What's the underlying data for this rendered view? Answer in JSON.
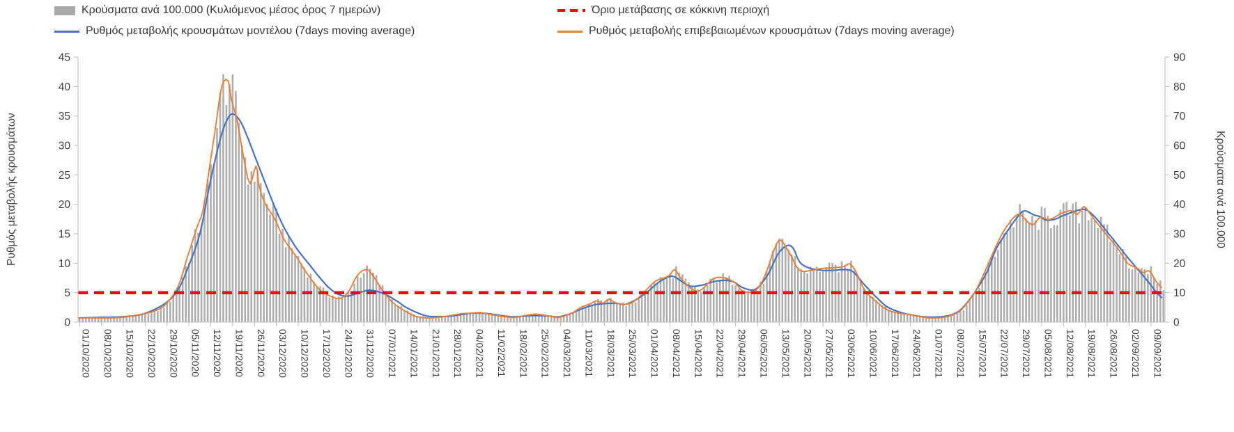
{
  "page": {
    "background": "#ffffff"
  },
  "chart_data": {
    "type": "composite",
    "title": "",
    "legend": [
      {
        "id": "bars",
        "label": "Κρούσματα ανά 100.000 (Κυλιόμενος μέσος όρος 7 ημερών)",
        "swatch": "bar",
        "color": "#a9a9a9"
      },
      {
        "id": "threshold",
        "label": "Όριο μετάβασης σε κόκκινη περιοχή",
        "swatch": "dashes",
        "color": "#ff0000"
      },
      {
        "id": "model",
        "label": "Ρυθμός μεταβολής κρουσμάτων μοντέλου (7days moving average)",
        "swatch": "line",
        "color": "#4472c4"
      },
      {
        "id": "confirmed",
        "label": "Ρυθμός μεταβολής επιβεβαιωμένων κρουσμάτων (7days moving average)",
        "swatch": "line",
        "color": "#ed7d31"
      }
    ],
    "axes": {
      "left": {
        "label": "Ρυθμός μεταβολής κρουσμάτων",
        "min": 0,
        "max": 45,
        "tick_step": 5
      },
      "right": {
        "label": "Κρούσματα ανά 100.000",
        "min": 0,
        "max": 90,
        "tick_step": 10
      },
      "x": {
        "days_per_tick": 7,
        "total_days": 348,
        "tick_labels": [
          "01/10/2020",
          "08/10/2020",
          "15/10/2020",
          "22/10/2020",
          "29/10/2020",
          "05/11/2020",
          "12/11/2020",
          "19/11/2020",
          "26/11/2020",
          "03/12/2020",
          "10/12/2020",
          "17/12/2020",
          "24/12/2020",
          "31/12/2020",
          "07/01/2021",
          "14/01/2021",
          "21/01/2021",
          "28/01/2021",
          "04/02/2021",
          "11/02/2021",
          "18/02/2021",
          "25/02/2021",
          "04/03/2021",
          "11/03/2021",
          "18/03/2021",
          "25/03/2021",
          "01/04/2021",
          "08/04/2021",
          "15/04/2021",
          "22/04/2021",
          "29/04/2021",
          "06/05/2021",
          "13/05/2021",
          "20/05/2021",
          "27/05/2021",
          "03/06/2021",
          "10/06/2021",
          "17/06/2021",
          "24/06/2021",
          "01/07/2021",
          "08/07/2021",
          "15/07/2021",
          "22/07/2021",
          "29/07/2021",
          "05/08/2021",
          "12/08/2021",
          "19/08/2021",
          "26/08/2021",
          "02/09/2021",
          "09/09/2021"
        ]
      }
    },
    "threshold": {
      "label": "Όριο μετάβασης σε κόκκινη περιοχή",
      "axis": "left",
      "value": 5,
      "color": "#ff0000",
      "style": "dashed"
    },
    "series": [
      {
        "name": "Κρούσματα ανά 100.000 (Κυλιόμενος μέσος όρος 7 ημερών)",
        "type": "bar",
        "axis": "right",
        "color": "#aeaeae",
        "sampling": "weekly values read at the labeled x ticks",
        "weekly_values_at_ticks": [
          1.5,
          1.5,
          1.6,
          3,
          6,
          22,
          52,
          76,
          44,
          35,
          22,
          11.5,
          8,
          17.5,
          10,
          3.5,
          1.5,
          2,
          3,
          2.5,
          1.5,
          2.5,
          1.5,
          5,
          6.5,
          6,
          11,
          15.5,
          11.5,
          14.5,
          13.5,
          10.5,
          27.5,
          17.5,
          18,
          19,
          10.5,
          4,
          2.5,
          1.5,
          2.5,
          10,
          26,
          36.5,
          35.5,
          37,
          39,
          30,
          20,
          17.5
        ]
      },
      {
        "name": "Ρυθμός μεταβολής κρουσμάτων μοντέλου (7days moving average)",
        "type": "line",
        "axis": "left",
        "color": "#4472c4",
        "sampling": "day offset from 01/10/2020, value on left axis",
        "points_day_value": [
          [
            0,
            0.7
          ],
          [
            7,
            0.8
          ],
          [
            14,
            0.9
          ],
          [
            21,
            1.4
          ],
          [
            28,
            3.2
          ],
          [
            32,
            5.5
          ],
          [
            35,
            9
          ],
          [
            39,
            15
          ],
          [
            42,
            23
          ],
          [
            45,
            30
          ],
          [
            47,
            33.5
          ],
          [
            49,
            35.3
          ],
          [
            51,
            34.8
          ],
          [
            53,
            33
          ],
          [
            56,
            29
          ],
          [
            60,
            23.5
          ],
          [
            63,
            19.5
          ],
          [
            66,
            16
          ],
          [
            70,
            12.5
          ],
          [
            74,
            9.8
          ],
          [
            77,
            7.8
          ],
          [
            80,
            6
          ],
          [
            83,
            4.8
          ],
          [
            86,
            4.4
          ],
          [
            89,
            4.8
          ],
          [
            92,
            5.3
          ],
          [
            94,
            5.4
          ],
          [
            98,
            4.8
          ],
          [
            102,
            3.6
          ],
          [
            105,
            2.5
          ],
          [
            109,
            1.5
          ],
          [
            112,
            1
          ],
          [
            116,
            0.95
          ],
          [
            119,
            1
          ],
          [
            123,
            1.3
          ],
          [
            126,
            1.5
          ],
          [
            130,
            1.5
          ],
          [
            133,
            1.3
          ],
          [
            137,
            1
          ],
          [
            140,
            0.9
          ],
          [
            144,
            1.05
          ],
          [
            147,
            1.1
          ],
          [
            151,
            1
          ],
          [
            154,
            0.9
          ],
          [
            158,
            1.5
          ],
          [
            161,
            2.2
          ],
          [
            165,
            2.9
          ],
          [
            168,
            3.1
          ],
          [
            172,
            3.2
          ],
          [
            175,
            3
          ],
          [
            178,
            3.6
          ],
          [
            182,
            5
          ],
          [
            186,
            6.8
          ],
          [
            190,
            7.8
          ],
          [
            193,
            7
          ],
          [
            196,
            6.1
          ],
          [
            200,
            6.3
          ],
          [
            203,
            6.8
          ],
          [
            207,
            7.1
          ],
          [
            210,
            6.8
          ],
          [
            213,
            5.8
          ],
          [
            217,
            5.6
          ],
          [
            221,
            8.2
          ],
          [
            224,
            11.5
          ],
          [
            227,
            13
          ],
          [
            229,
            12.5
          ],
          [
            231,
            10.2
          ],
          [
            234,
            9.2
          ],
          [
            238,
            8.8
          ],
          [
            242,
            8.8
          ],
          [
            245,
            8.9
          ],
          [
            248,
            8.6
          ],
          [
            252,
            6.2
          ],
          [
            256,
            4
          ],
          [
            259,
            2.6
          ],
          [
            263,
            1.7
          ],
          [
            266,
            1.3
          ],
          [
            270,
            0.95
          ],
          [
            273,
            0.85
          ],
          [
            277,
            0.95
          ],
          [
            280,
            1.3
          ],
          [
            283,
            2.3
          ],
          [
            287,
            5
          ],
          [
            291,
            8.5
          ],
          [
            294,
            12.5
          ],
          [
            298,
            15.8
          ],
          [
            301,
            18
          ],
          [
            303,
            18.9
          ],
          [
            306,
            18.2
          ],
          [
            308,
            17.9
          ],
          [
            310,
            17.3
          ],
          [
            313,
            17.5
          ],
          [
            315,
            18
          ],
          [
            318,
            18.6
          ],
          [
            321,
            19.1
          ],
          [
            323,
            19
          ],
          [
            326,
            17.6
          ],
          [
            329,
            15.6
          ],
          [
            333,
            13
          ],
          [
            336,
            11
          ],
          [
            340,
            8.5
          ],
          [
            343,
            6.6
          ],
          [
            345,
            5.2
          ],
          [
            347,
            4.1
          ]
        ]
      },
      {
        "name": "Ρυθμός μεταβολής επιβεβαιωμένων κρουσμάτων (7days moving average)",
        "type": "line",
        "axis": "left",
        "color": "#ed7d31",
        "sampling": "day offset from 01/10/2020, value on left axis",
        "points_day_value": [
          [
            0,
            0.7
          ],
          [
            7,
            0.7
          ],
          [
            14,
            0.8
          ],
          [
            21,
            1.4
          ],
          [
            25,
            2
          ],
          [
            28,
            3
          ],
          [
            32,
            6
          ],
          [
            35,
            11
          ],
          [
            38,
            16
          ],
          [
            40,
            19
          ],
          [
            42,
            26
          ],
          [
            44,
            33
          ],
          [
            46,
            40
          ],
          [
            48,
            41
          ],
          [
            49,
            38
          ],
          [
            51,
            34
          ],
          [
            53,
            28
          ],
          [
            55,
            23.5
          ],
          [
            57,
            26.5
          ],
          [
            58,
            23
          ],
          [
            60,
            20
          ],
          [
            63,
            17.5
          ],
          [
            66,
            14
          ],
          [
            70,
            11
          ],
          [
            73,
            8.5
          ],
          [
            77,
            5.7
          ],
          [
            80,
            4.6
          ],
          [
            84,
            4
          ],
          [
            87,
            5.5
          ],
          [
            89,
            7.6
          ],
          [
            91,
            8.7
          ],
          [
            93,
            8.8
          ],
          [
            95,
            7.4
          ],
          [
            98,
            5
          ],
          [
            101,
            3.2
          ],
          [
            105,
            1.8
          ],
          [
            108,
            1
          ],
          [
            112,
            0.7
          ],
          [
            116,
            0.85
          ],
          [
            119,
            1.1
          ],
          [
            123,
            1.45
          ],
          [
            126,
            1.5
          ],
          [
            129,
            1.6
          ],
          [
            133,
            1.2
          ],
          [
            137,
            0.9
          ],
          [
            140,
            0.8
          ],
          [
            144,
            1.2
          ],
          [
            147,
            1.35
          ],
          [
            151,
            1
          ],
          [
            154,
            0.8
          ],
          [
            158,
            1.5
          ],
          [
            161,
            2.5
          ],
          [
            164,
            3.1
          ],
          [
            166,
            3.6
          ],
          [
            168,
            3.2
          ],
          [
            170,
            3.9
          ],
          [
            172,
            3.3
          ],
          [
            175,
            3
          ],
          [
            178,
            3.5
          ],
          [
            182,
            5.5
          ],
          [
            185,
            7
          ],
          [
            189,
            7.8
          ],
          [
            191,
            8.9
          ],
          [
            193,
            7.4
          ],
          [
            196,
            5.8
          ],
          [
            199,
            5.3
          ],
          [
            203,
            7.2
          ],
          [
            206,
            7.6
          ],
          [
            210,
            6.8
          ],
          [
            213,
            5.2
          ],
          [
            217,
            5.4
          ],
          [
            220,
            8
          ],
          [
            223,
            12.5
          ],
          [
            225,
            13.9
          ],
          [
            228,
            11.5
          ],
          [
            231,
            8.8
          ],
          [
            235,
            8.8
          ],
          [
            238,
            9.1
          ],
          [
            241,
            9.2
          ],
          [
            245,
            9.4
          ],
          [
            247,
            9.9
          ],
          [
            249,
            8.6
          ],
          [
            252,
            5.3
          ],
          [
            256,
            3.3
          ],
          [
            259,
            2.1
          ],
          [
            263,
            1.5
          ],
          [
            266,
            1.3
          ],
          [
            270,
            0.9
          ],
          [
            273,
            0.7
          ],
          [
            277,
            0.8
          ],
          [
            280,
            1.2
          ],
          [
            283,
            2.2
          ],
          [
            287,
            5
          ],
          [
            290,
            8.2
          ],
          [
            294,
            13
          ],
          [
            297,
            16
          ],
          [
            301,
            18.3
          ],
          [
            304,
            17
          ],
          [
            306,
            16.6
          ],
          [
            308,
            17.8
          ],
          [
            311,
            17.4
          ],
          [
            315,
            18.5
          ],
          [
            318,
            18.9
          ],
          [
            320,
            18.3
          ],
          [
            322,
            19.6
          ],
          [
            324,
            18.4
          ],
          [
            326,
            17
          ],
          [
            329,
            15
          ],
          [
            333,
            12.4
          ],
          [
            336,
            10
          ],
          [
            339,
            9.2
          ],
          [
            341,
            8.4
          ],
          [
            343,
            8.7
          ],
          [
            345,
            7
          ],
          [
            347,
            5.8
          ]
        ]
      }
    ]
  }
}
